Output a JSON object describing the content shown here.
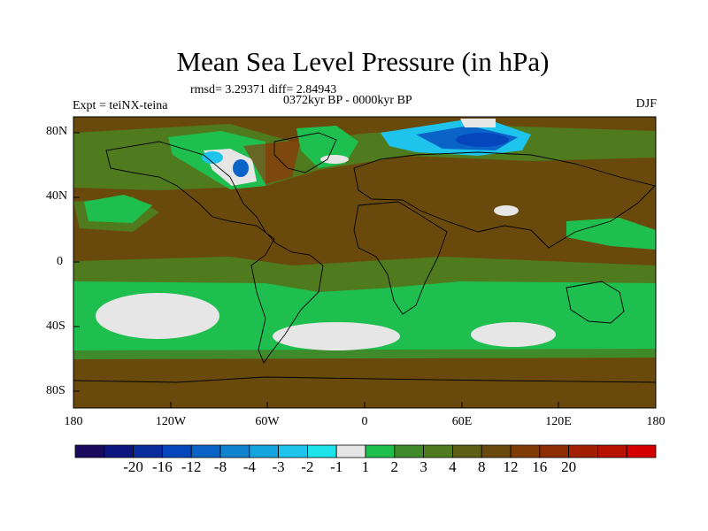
{
  "title": "Mean Sea Level Pressure (in hPa)",
  "stats": "rmsd= 3.29371 diff= 2.84943",
  "period": "0372kyr BP - 0000kyr BP",
  "experiment": "Expt = teiNX-teina",
  "season": "DJF",
  "lat_labels": [
    "80N",
    "40N",
    "0",
    "40S",
    "80S"
  ],
  "lon_labels": [
    "180",
    "120W",
    "60W",
    "0",
    "60E",
    "120E",
    "180"
  ],
  "colorbar": {
    "colors": [
      "#1a0a5e",
      "#0d157f",
      "#0a2d9e",
      "#0546bd",
      "#0a64c8",
      "#1184d0",
      "#14a5de",
      "#1ec4ec",
      "#1ee2ea",
      "#e6e6e6",
      "#1fbf4f",
      "#3f8a2a",
      "#4f7a1e",
      "#5d6014",
      "#6a4a0c",
      "#7e3b06",
      "#8d2d04",
      "#a21f02",
      "#b81200",
      "#d40000"
    ],
    "labels": [
      "-20",
      "-16",
      "-12",
      "-8",
      "-4",
      "-3",
      "-2",
      "-1",
      "1",
      "2",
      "3",
      "4",
      "8",
      "12",
      "16",
      "20"
    ]
  }
}
